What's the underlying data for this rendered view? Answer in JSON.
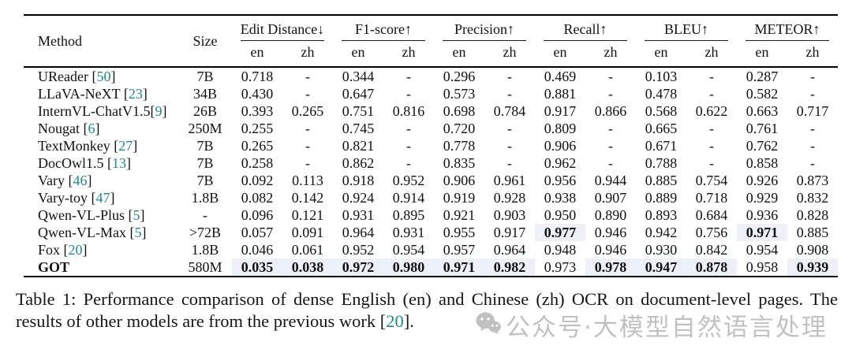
{
  "table": {
    "method_header": "Method",
    "size_header": "Size",
    "groups": [
      {
        "label": "Edit Distance",
        "arrow": "↓"
      },
      {
        "label": "F1-score",
        "arrow": "↑"
      },
      {
        "label": "Precision",
        "arrow": "↑"
      },
      {
        "label": "Recall",
        "arrow": "↑"
      },
      {
        "label": "BLEU",
        "arrow": "↑"
      },
      {
        "label": "METEOR",
        "arrow": "↑"
      }
    ],
    "subheaders": [
      "en",
      "zh"
    ],
    "rows": [
      {
        "method": "UReader",
        "cite": "50",
        "cite_space": true,
        "bold_method": false,
        "size": "7B",
        "values": [
          "0.718",
          "-",
          "0.344",
          "-",
          "0.296",
          "-",
          "0.469",
          "-",
          "0.103",
          "-",
          "0.287",
          "-"
        ],
        "bold": []
      },
      {
        "method": "LLaVA-NeXT",
        "cite": "23",
        "cite_space": true,
        "bold_method": false,
        "size": "34B",
        "values": [
          "0.430",
          "-",
          "0.647",
          "-",
          "0.573",
          "-",
          "0.881",
          "-",
          "0.478",
          "-",
          "0.582",
          "-"
        ],
        "bold": []
      },
      {
        "method": "InternVL-ChatV1.5",
        "cite": "9",
        "cite_space": false,
        "bold_method": false,
        "size": "26B",
        "values": [
          "0.393",
          "0.265",
          "0.751",
          "0.816",
          "0.698",
          "0.784",
          "0.917",
          "0.866",
          "0.568",
          "0.622",
          "0.663",
          "0.717"
        ],
        "bold": []
      },
      {
        "method": "Nougat",
        "cite": "6",
        "cite_space": true,
        "bold_method": false,
        "size": "250M",
        "values": [
          "0.255",
          "-",
          "0.745",
          "-",
          "0.720",
          "-",
          "0.809",
          "-",
          "0.665",
          "-",
          "0.761",
          "-"
        ],
        "bold": []
      },
      {
        "method": "TextMonkey",
        "cite": "27",
        "cite_space": true,
        "bold_method": false,
        "size": "7B",
        "values": [
          "0.265",
          "-",
          "0.821",
          "-",
          "0.778",
          "-",
          "0.906",
          "-",
          "0.671",
          "-",
          "0.762",
          "-"
        ],
        "bold": []
      },
      {
        "method": "DocOwl1.5",
        "cite": "13",
        "cite_space": true,
        "bold_method": false,
        "size": "7B",
        "values": [
          "0.258",
          "-",
          "0.862",
          "-",
          "0.835",
          "-",
          "0.962",
          "-",
          "0.788",
          "-",
          "0.858",
          "-"
        ],
        "bold": []
      },
      {
        "method": "Vary",
        "cite": "46",
        "cite_space": true,
        "bold_method": false,
        "size": "7B",
        "values": [
          "0.092",
          "0.113",
          "0.918",
          "0.952",
          "0.906",
          "0.961",
          "0.956",
          "0.944",
          "0.885",
          "0.754",
          "0.926",
          "0.873"
        ],
        "bold": []
      },
      {
        "method": "Vary-toy",
        "cite": "47",
        "cite_space": true,
        "bold_method": false,
        "size": "1.8B",
        "values": [
          "0.082",
          "0.142",
          "0.924",
          "0.914",
          "0.919",
          "0.928",
          "0.938",
          "0.907",
          "0.889",
          "0.718",
          "0.929",
          "0.832"
        ],
        "bold": []
      },
      {
        "method": "Qwen-VL-Plus",
        "cite": "5",
        "cite_space": true,
        "bold_method": false,
        "size": "-",
        "values": [
          "0.096",
          "0.121",
          "0.931",
          "0.895",
          "0.921",
          "0.903",
          "0.950",
          "0.890",
          "0.893",
          "0.684",
          "0.936",
          "0.828"
        ],
        "bold": []
      },
      {
        "method": "Qwen-VL-Max",
        "cite": "5",
        "cite_space": true,
        "bold_method": false,
        "size": ">72B",
        "values": [
          "0.057",
          "0.091",
          "0.964",
          "0.931",
          "0.955",
          "0.917",
          "0.977",
          "0.946",
          "0.942",
          "0.756",
          "0.971",
          "0.885"
        ],
        "bold": [
          6,
          10
        ]
      },
      {
        "method": "Fox",
        "cite": "20",
        "cite_space": true,
        "bold_method": false,
        "size": "1.8B",
        "values": [
          "0.046",
          "0.061",
          "0.952",
          "0.954",
          "0.957",
          "0.964",
          "0.948",
          "0.946",
          "0.930",
          "0.842",
          "0.954",
          "0.908"
        ],
        "bold": []
      },
      {
        "method": "GOT",
        "cite": null,
        "cite_space": false,
        "bold_method": true,
        "size": "580M",
        "values": [
          "0.035",
          "0.038",
          "0.972",
          "0.980",
          "0.971",
          "0.982",
          "0.973",
          "0.978",
          "0.947",
          "0.878",
          "0.958",
          "0.939"
        ],
        "bold": [
          0,
          1,
          2,
          3,
          4,
          5,
          7,
          8,
          9,
          11
        ]
      }
    ]
  },
  "caption": {
    "part1": "Table 1: Performance comparison of dense English (en) and Chinese (zh) OCR on document-level pages. The results of other models are from the previous work [",
    "cite": "20",
    "part2": "]."
  },
  "watermark": {
    "icon": "wechat-icon",
    "text": "公众号·大模型自然语言处理"
  },
  "colors": {
    "citation_teal": "#1f8a8a",
    "highlight_bg": "#eef0f9",
    "watermark_gray": "#8f8f8f"
  }
}
